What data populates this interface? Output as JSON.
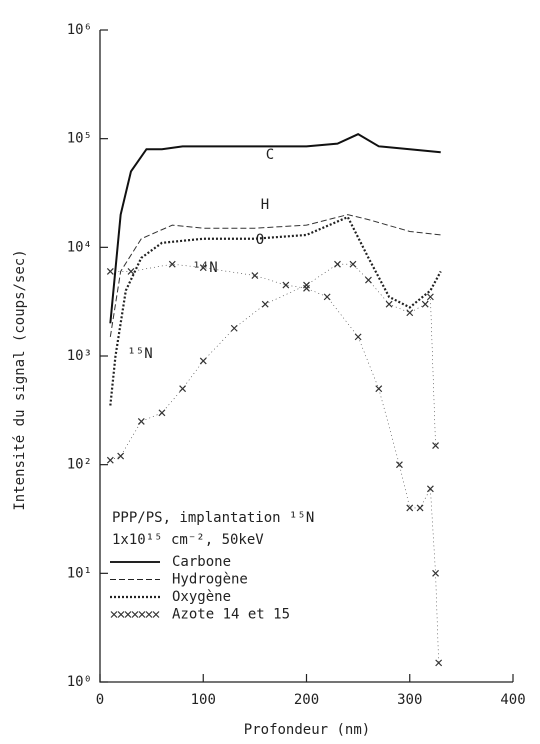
{
  "chart_data": {
    "type": "line",
    "log_y": true,
    "xlabel": "Profondeur (nm)",
    "ylabel": "Intensité du signal (coups/sec)",
    "xlim": [
      0,
      400
    ],
    "xticks": [
      0,
      100,
      200,
      300,
      400
    ],
    "ylim": [
      1,
      1000000
    ],
    "yticks": [
      {
        "value": 1,
        "label": "10⁰"
      },
      {
        "value": 10,
        "label": "10¹"
      },
      {
        "value": 100,
        "label": "10²"
      },
      {
        "value": 1000,
        "label": "10³"
      },
      {
        "value": 10000,
        "label": "10⁴"
      },
      {
        "value": 100000,
        "label": "10⁵"
      },
      {
        "value": 1000000,
        "label": "10⁶"
      }
    ],
    "legend_title": [
      "PPP/PS, implantation ¹⁵N",
      "1x10¹⁵ cm⁻², 50keV"
    ],
    "legend": [
      {
        "label": "Carbone",
        "style": "solid"
      },
      {
        "label": "Hydrogène",
        "style": "dashed"
      },
      {
        "label": "Oxygène",
        "style": "dotted"
      },
      {
        "label": "Azote 14 et 15",
        "style": "cross"
      }
    ],
    "legend_position": "lower left",
    "series": [
      {
        "name": "C",
        "style": "solid",
        "color": "#111",
        "x": [
          10,
          20,
          30,
          45,
          60,
          80,
          100,
          150,
          200,
          230,
          250,
          270,
          300,
          330
        ],
        "values": [
          2000,
          20000,
          50000,
          80000,
          80000,
          85000,
          85000,
          85000,
          85000,
          90000,
          110000,
          85000,
          80000,
          75000
        ]
      },
      {
        "name": "H",
        "style": "dashed",
        "color": "#333",
        "x": [
          10,
          20,
          40,
          70,
          100,
          150,
          200,
          240,
          260,
          300,
          330
        ],
        "values": [
          1500,
          6000,
          12000,
          16000,
          15000,
          15000,
          16000,
          20000,
          18000,
          14000,
          13000
        ]
      },
      {
        "name": "O",
        "style": "dotted",
        "color": "#222",
        "x": [
          10,
          15,
          25,
          40,
          60,
          100,
          150,
          200,
          240,
          260,
          280,
          300,
          320,
          330
        ],
        "values": [
          350,
          1000,
          4000,
          8000,
          11000,
          12000,
          12000,
          13000,
          19000,
          8000,
          3500,
          2800,
          4000,
          6000
        ]
      },
      {
        "name": "¹⁴N",
        "style": "cross",
        "color": "#333",
        "x": [
          10,
          30,
          70,
          100,
          150,
          180,
          200,
          220,
          250,
          270,
          290,
          300,
          310,
          320,
          325,
          328
        ],
        "values": [
          6000,
          6000,
          7000,
          6500,
          5500,
          4500,
          4200,
          3500,
          1500,
          500,
          100,
          40,
          40,
          60,
          10,
          1.5
        ]
      },
      {
        "name": "¹⁵N",
        "style": "cross",
        "color": "#333",
        "x": [
          10,
          20,
          40,
          60,
          80,
          100,
          130,
          160,
          200,
          230,
          245,
          260,
          280,
          300,
          315,
          320,
          325
        ],
        "values": [
          110,
          120,
          250,
          300,
          500,
          900,
          1800,
          3000,
          4500,
          7000,
          7000,
          5000,
          3000,
          2500,
          3000,
          3500,
          150
        ]
      }
    ]
  }
}
